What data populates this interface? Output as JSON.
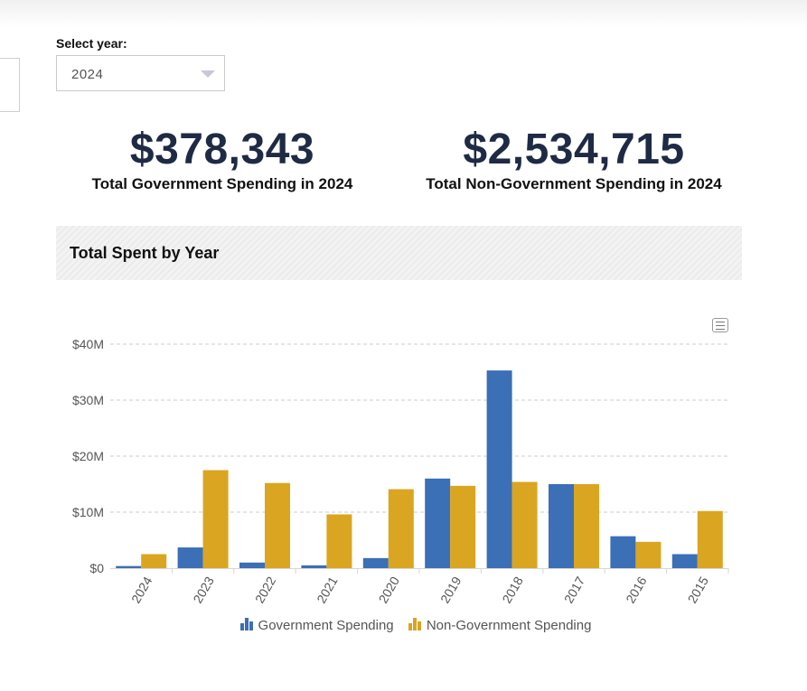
{
  "select": {
    "label": "Select year:",
    "value": "2024"
  },
  "stats": {
    "government": {
      "value": "$378,343",
      "label": "Total Government Spending in 2024"
    },
    "non_government": {
      "value": "$2,534,715",
      "label": "Total Non-Government Spending in 2024"
    }
  },
  "section": {
    "title": "Total Spent by Year"
  },
  "icons": {
    "select_caret": "chevron-down-icon",
    "menu": "hamburger-menu-icon"
  },
  "colors": {
    "government": "#3b6fb6",
    "non_government": "#daa520",
    "grid": "#cccccc"
  },
  "chart_data": {
    "type": "bar",
    "categories": [
      "2024",
      "2023",
      "2022",
      "2021",
      "2020",
      "2019",
      "2018",
      "2017",
      "2016",
      "2015"
    ],
    "series": [
      {
        "name": "Government Spending",
        "values": [
          0.38,
          3.7,
          1.0,
          0.5,
          1.8,
          16.0,
          35.3,
          15.0,
          5.7,
          2.5
        ]
      },
      {
        "name": "Non-Government Spending",
        "values": [
          2.5,
          17.5,
          15.2,
          9.6,
          14.1,
          14.7,
          15.4,
          15.0,
          4.7,
          10.2
        ]
      }
    ],
    "y_ticks": [
      "$0",
      "$10M",
      "$20M",
      "$30M",
      "$40M"
    ],
    "ylim": [
      0,
      40
    ],
    "grid": true,
    "legend_position": "bottom-center"
  }
}
